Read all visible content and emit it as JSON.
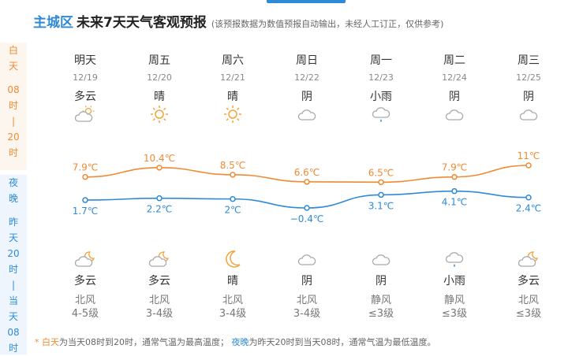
{
  "header": {
    "city": "主城区",
    "title": "未来7天天气客观预报",
    "note": "(该预报数据为数值预报自动输出，未经人工订正，仅供参考)"
  },
  "sidebar": {
    "day_chars": [
      "白",
      "天",
      "",
      "08",
      "时",
      "|",
      "20",
      "时"
    ],
    "night_chars": [
      "夜",
      "晚",
      "",
      "昨",
      "天",
      "20",
      "时",
      "|",
      "当",
      "天",
      "08",
      "时"
    ]
  },
  "days": [
    {
      "name": "明天",
      "date": "12/19",
      "day_weather": "多云",
      "day_icon": "partly-cloudy-day-icon",
      "night_weather": "多云",
      "night_icon": "partly-cloudy-night-icon",
      "wind_dir": "北风",
      "wind_level": "4-5级"
    },
    {
      "name": "周五",
      "date": "12/20",
      "day_weather": "晴",
      "day_icon": "sunny-icon",
      "night_weather": "多云",
      "night_icon": "partly-cloudy-night-icon",
      "wind_dir": "北风",
      "wind_level": "3-4级"
    },
    {
      "name": "周六",
      "date": "12/21",
      "day_weather": "晴",
      "day_icon": "sunny-icon",
      "night_weather": "晴",
      "night_icon": "moon-icon",
      "wind_dir": "北风",
      "wind_level": "3-4级"
    },
    {
      "name": "周日",
      "date": "12/22",
      "day_weather": "阴",
      "day_icon": "cloud-icon",
      "night_weather": "阴",
      "night_icon": "cloud-icon",
      "wind_dir": "北风",
      "wind_level": "3-4级"
    },
    {
      "name": "周一",
      "date": "12/23",
      "day_weather": "小雨",
      "day_icon": "light-rain-icon",
      "night_weather": "阴",
      "night_icon": "cloud-icon",
      "wind_dir": "静风",
      "wind_level": "≤3级"
    },
    {
      "name": "周二",
      "date": "12/24",
      "day_weather": "阴",
      "day_icon": "cloud-icon",
      "night_weather": "小雨",
      "night_icon": "light-rain-icon",
      "wind_dir": "静风",
      "wind_level": "≤3级"
    },
    {
      "name": "周三",
      "date": "12/25",
      "day_weather": "阴",
      "day_icon": "cloud-icon",
      "night_weather": "多云",
      "night_icon": "partly-cloudy-night-icon",
      "wind_dir": "北风",
      "wind_level": "≤3级"
    }
  ],
  "chart_data": {
    "type": "line",
    "categories": [
      "12/19",
      "12/20",
      "12/21",
      "12/22",
      "12/23",
      "12/24",
      "12/25"
    ],
    "series": [
      {
        "name": "",
        "values": [
          7.9,
          10.4,
          8.5,
          6.6,
          6.5,
          7.9,
          11
        ],
        "labels": [
          "7.9℃",
          "10.4℃",
          "8.5℃",
          "6.6℃",
          "6.5℃",
          "7.9℃",
          "11℃"
        ],
        "color": "#f08a33"
      },
      {
        "name": "",
        "values": [
          1.7,
          2.2,
          2,
          -0.4,
          3.1,
          4.1,
          2.4
        ],
        "labels": [
          "1.7℃",
          "2.2℃",
          "2℃",
          "−0.4℃",
          "3.1℃",
          "4.1℃",
          "2.4℃"
        ],
        "color": "#2e8ad6"
      }
    ]
  },
  "footer": {
    "star": "*",
    "day_term": "白天",
    "day_text": "为当天08时到20时，通常气温为最高温度；",
    "night_term": "夜晚",
    "night_text": "为昨天20时到当天08时，通常气温为最低温度。"
  },
  "colors": {
    "accent": "#2e8ad6",
    "day": "#f08a33",
    "night": "#2e8ad6"
  }
}
